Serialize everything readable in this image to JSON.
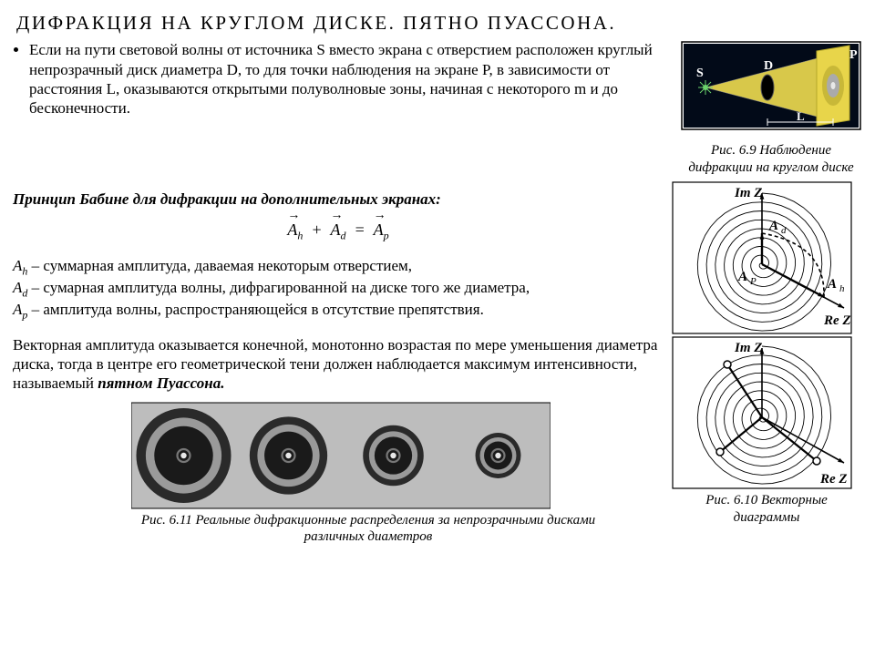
{
  "title": "ДИФРАКЦИЯ  НА  КРУГЛОМ  ДИСКЕ.  ПЯТНО  ПУАССОНА.",
  "bullet": "Если на пути световой волны от источника S вместо экрана с отверстием расположен круглый непрозрачный диск диаметра D, то для точки наблюдения на экране P, в зависимости от расстояния L, оказываются открытыми полуволновые зоны, начиная с некоторого m и до бесконечности.",
  "babinet": "Принцип Бабине для дифракции на дополнительных экранах:",
  "def_Ah": " – суммарная амплитуда, даваемая некоторым отверстием,",
  "def_Ad": " – сумарная амплитуда волны, дифрагированной на диске того же диаметра,",
  "def_Ap": " – амплитуда волны, распространяющейся в отсутствие препятствия.",
  "para2": "Векторная амплитуда оказывается конечной, монотонно возрастая по мере уменьшения диаметра диска, тогда в центре его геометрической тени должен наблюдается максимум интенсивности, называемый ",
  "para2b": "пятном Пуассона.",
  "fig69": "Рис. 6.9 Наблюдение дифракции на круглом диске",
  "fig610": "Рис. 6.10 Векторные диаграммы",
  "fig611": "Рис. 6.11 Реальные дифракционные распределения за непрозрачными дисками различных диаметров",
  "fig69_labels": {
    "S": "S",
    "D": "D",
    "P": "P",
    "L": "L"
  },
  "fig610_labels": {
    "ImZ": "Im Z",
    "ReZ": "Re Z",
    "Ad": "A",
    "Ah": "A",
    "Ap": "A",
    "d": "d",
    "h": "h",
    "p": "P"
  },
  "poisson": {
    "panels": 4,
    "radii_scale": [
      1.0,
      0.82,
      0.64,
      0.48
    ],
    "rings": 5,
    "bg": "#bdbdbd",
    "dark": "#1a1a1a",
    "mid": "#888888",
    "light": "#e8e8e8"
  },
  "spiral": {
    "turns": 8,
    "stroke": "#000000",
    "bg": "#ffffff"
  },
  "colors": {
    "border": "#000000",
    "screen": "#e8d54a",
    "disk": "#000000",
    "beam": "#d8c84a",
    "source": "#6bd46b"
  }
}
